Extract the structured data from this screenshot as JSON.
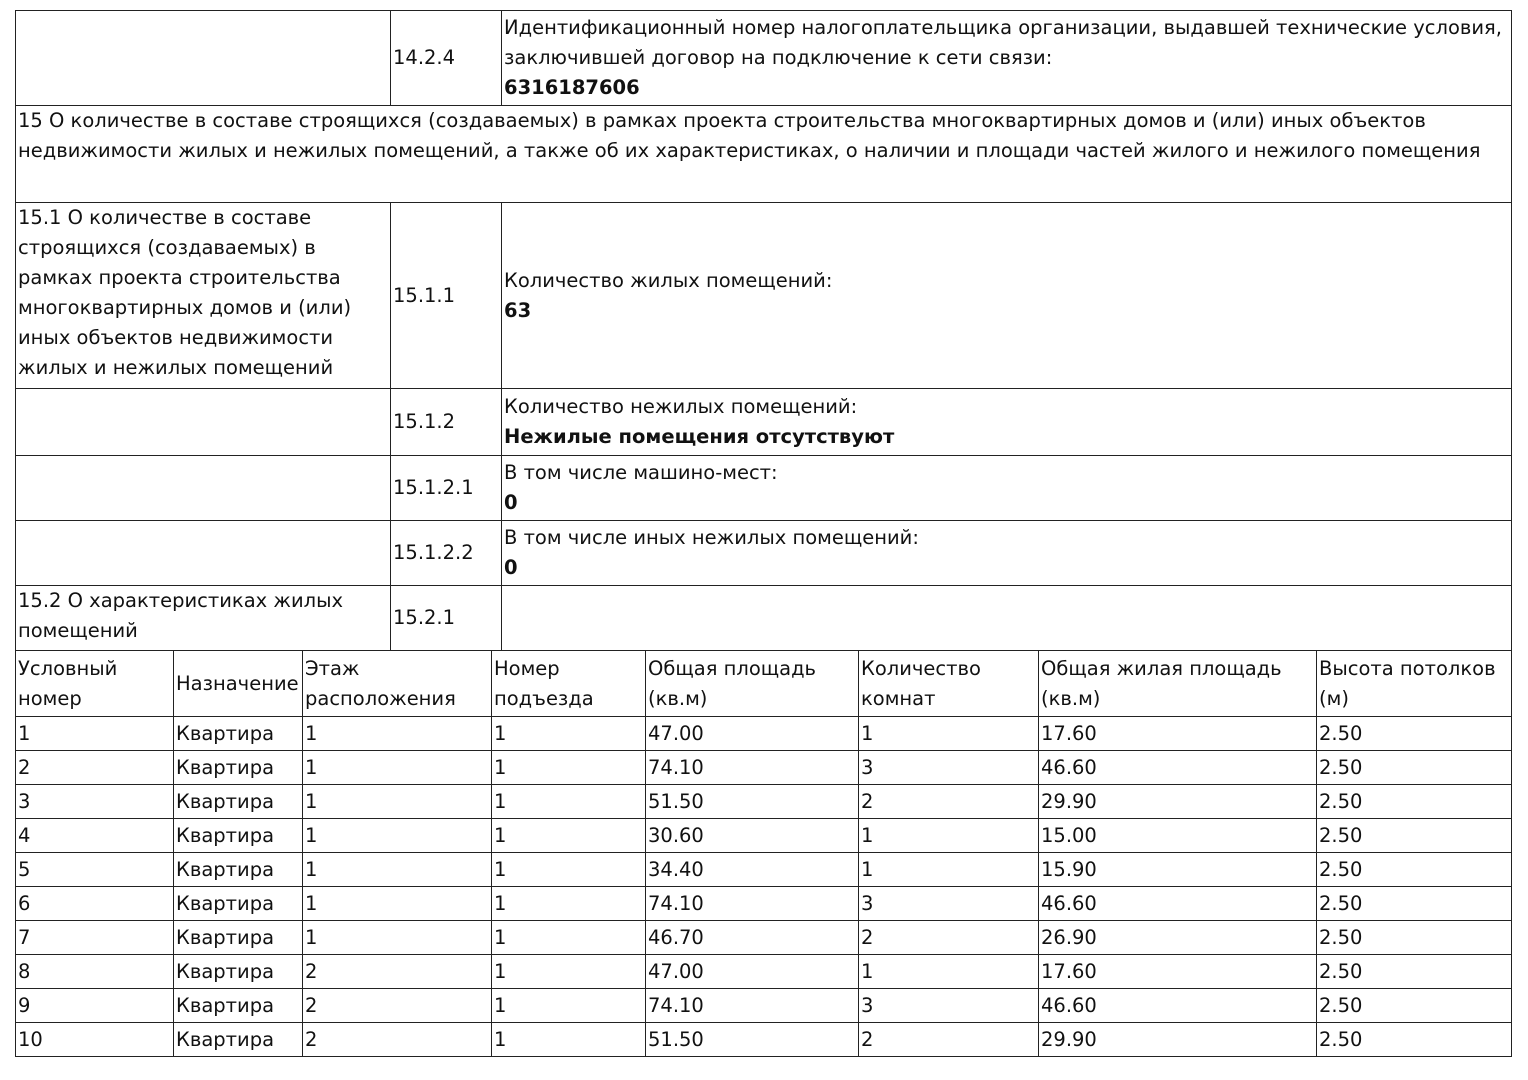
{
  "rows": {
    "r1424": {
      "code": "14.2.4",
      "label": "Идентификационный номер налогоплательщика организации, выдавшей технические условия, заключившей договор на подключение к сети связи:",
      "value": "6316187606"
    },
    "section15": "15 О количестве в составе строящихся (создаваемых) в рамках проекта строительства многоквартирных домов и (или) иных объектов недвижимости жилых и нежилых помещений, а также об их характеристиках, о наличии и площади частей жилого и нежилого помещения",
    "s151": "15.1 О количестве в составе строящихся (создаваемых) в рамках проекта строительства многоквартирных домов и (или) иных объектов недвижимости жилых и нежилых помещений",
    "r1511": {
      "code": "15.1.1",
      "label": "Количество жилых помещений:",
      "value": "63"
    },
    "r1512": {
      "code": "15.1.2",
      "label": "Количество нежилых помещений:",
      "value": "Нежилые помещения отсутствуют"
    },
    "r15121": {
      "code": "15.1.2.1",
      "label": "В том числе машино-мест:",
      "value": "0"
    },
    "r15122": {
      "code": "15.1.2.2",
      "label": "В том числе иных нежилых помещений:",
      "value": "0"
    },
    "s152": "15.2 О характеристиках жилых помещений",
    "r1521": {
      "code": "15.2.1"
    }
  },
  "apartments": {
    "headers": [
      "Условный номер",
      "Назначение",
      "Этаж расположения",
      "Номер подъезда",
      "Общая площадь (кв.м)",
      "Количество комнат",
      "Общая жилая площадь (кв.м)",
      "Высота потолков (м)"
    ],
    "rows": [
      [
        "1",
        "Квартира",
        "1",
        "1",
        "47.00",
        "1",
        "17.60",
        "2.50"
      ],
      [
        "2",
        "Квартира",
        "1",
        "1",
        "74.10",
        "3",
        "46.60",
        "2.50"
      ],
      [
        "3",
        "Квартира",
        "1",
        "1",
        "51.50",
        "2",
        "29.90",
        "2.50"
      ],
      [
        "4",
        "Квартира",
        "1",
        "1",
        "30.60",
        "1",
        "15.00",
        "2.50"
      ],
      [
        "5",
        "Квартира",
        "1",
        "1",
        "34.40",
        "1",
        "15.90",
        "2.50"
      ],
      [
        "6",
        "Квартира",
        "1",
        "1",
        "74.10",
        "3",
        "46.60",
        "2.50"
      ],
      [
        "7",
        "Квартира",
        "1",
        "1",
        "46.70",
        "2",
        "26.90",
        "2.50"
      ],
      [
        "8",
        "Квартира",
        "2",
        "1",
        "47.00",
        "1",
        "17.60",
        "2.50"
      ],
      [
        "9",
        "Квартира",
        "2",
        "1",
        "74.10",
        "3",
        "46.60",
        "2.50"
      ],
      [
        "10",
        "Квартира",
        "2",
        "1",
        "51.50",
        "2",
        "29.90",
        "2.50"
      ]
    ]
  }
}
